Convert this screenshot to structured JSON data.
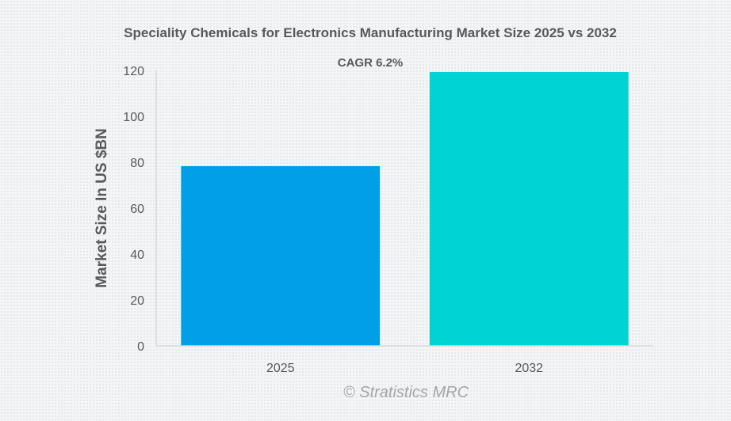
{
  "chart_data": {
    "type": "bar",
    "title": "Speciality Chemicals for Electronics Manufacturing Market Size 2025 vs 2032",
    "annotation": "CAGR 6.2%",
    "categories": [
      "2025",
      "2032"
    ],
    "values": [
      78.3,
      119.3
    ],
    "colors": [
      "#009fe8",
      "#00d3d3"
    ],
    "xlabel": "",
    "ylabel": "Market Size In US $BN",
    "ylim": [
      0,
      120
    ],
    "yticks": [
      0,
      20,
      40,
      60,
      80,
      100,
      120
    ],
    "grid": false,
    "legend": "none",
    "credit": "© Stratistics MRC"
  }
}
